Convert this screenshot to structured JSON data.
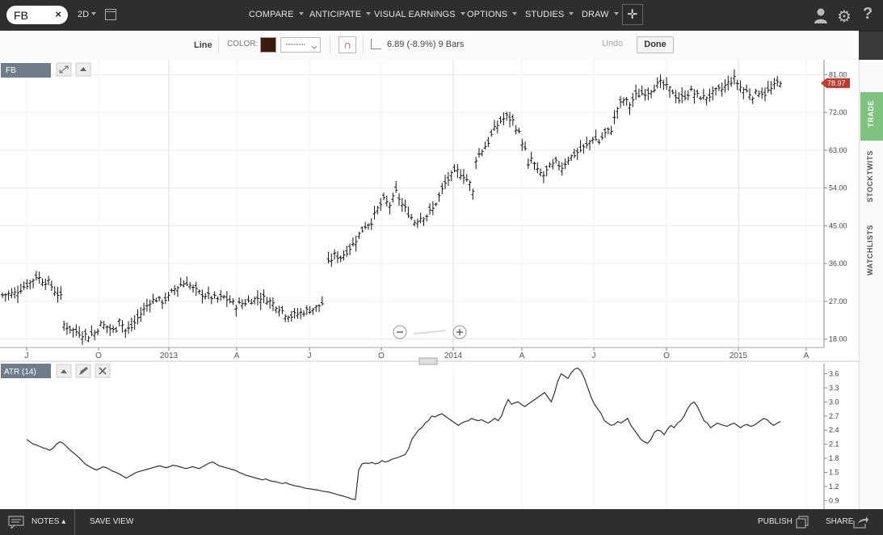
{
  "topbar": {
    "symbol": "FB",
    "clear_icon": "×",
    "period": "2D",
    "menus": [
      "COMPARE",
      "ANTICIPATE",
      "VISUAL EARNINGS",
      "OPTIONS",
      "STUDIES",
      "DRAW"
    ],
    "help": "?"
  },
  "drawbar": {
    "tool": "Line",
    "color_label": "COLOR:",
    "color": "#3a1a0d",
    "measure": "6.89 (-8.9%) 9 Bars",
    "undo": "Undo",
    "done": "Done"
  },
  "main_panel": {
    "label": "FB",
    "last_price": "78.97"
  },
  "atr_panel": {
    "label": "ATR (14)"
  },
  "sidetabs": [
    "TRADE",
    "STOCKTWITS",
    "WATCHLISTS"
  ],
  "bottombar": {
    "notes": "NOTES",
    "save_view": "SAVE VIEW",
    "publish": "PUBLISH",
    "share": "SHARE"
  },
  "chart_data": [
    {
      "type": "ohlc",
      "name": "FB",
      "x_ticks": [
        "J",
        "O",
        "2013",
        "A",
        "J",
        "O",
        "2014",
        "A",
        "J",
        "O",
        "2015",
        "A"
      ],
      "y_ticks": [
        18.0,
        27.0,
        36.0,
        45.0,
        54.0,
        63.0,
        72.0,
        81.0
      ],
      "ylim": [
        16,
        83
      ],
      "last_value": 78.97,
      "close_path": [
        [
          0,
          28.5
        ],
        [
          4,
          29
        ],
        [
          7,
          30.5
        ],
        [
          9,
          31.5
        ],
        [
          11,
          33
        ],
        [
          13,
          32
        ],
        [
          15,
          31.5
        ],
        [
          17,
          29.5
        ],
        [
          19,
          28
        ],
        [
          20,
          21.5
        ],
        [
          22,
          20.5
        ],
        [
          24,
          19.8
        ],
        [
          26,
          19.2
        ],
        [
          28,
          18.8
        ],
        [
          30,
          19.5
        ],
        [
          32,
          21.5
        ],
        [
          34,
          21
        ],
        [
          36,
          20
        ],
        [
          37,
          20.5
        ],
        [
          38,
          23
        ],
        [
          39,
          21.5
        ],
        [
          40,
          20
        ],
        [
          42,
          20.8
        ],
        [
          44,
          23
        ],
        [
          46,
          25
        ],
        [
          48,
          27
        ],
        [
          50,
          27.5
        ],
        [
          52,
          27
        ],
        [
          54,
          28
        ],
        [
          56,
          30
        ],
        [
          58,
          31
        ],
        [
          60,
          31.5
        ],
        [
          62,
          30
        ],
        [
          64,
          29
        ],
        [
          66,
          28.5
        ],
        [
          68,
          28
        ],
        [
          70,
          27.5
        ],
        [
          72,
          28
        ],
        [
          74,
          27
        ],
        [
          76,
          26
        ],
        [
          78,
          26.5
        ],
        [
          80,
          27
        ],
        [
          82,
          27.5
        ],
        [
          84,
          28
        ],
        [
          86,
          27.5
        ],
        [
          88,
          26.5
        ],
        [
          90,
          25.5
        ],
        [
          92,
          24
        ],
        [
          94,
          23.5
        ],
        [
          96,
          24
        ],
        [
          98,
          24.5
        ],
        [
          100,
          25
        ],
        [
          102,
          25.5
        ],
        [
          104,
          26.5
        ],
        [
          105,
          26
        ],
        [
          106,
          36
        ],
        [
          108,
          38
        ],
        [
          110,
          37.5
        ],
        [
          112,
          39
        ],
        [
          114,
          40.5
        ],
        [
          116,
          43
        ],
        [
          118,
          45
        ],
        [
          120,
          46
        ],
        [
          122,
          49
        ],
        [
          124,
          51
        ],
        [
          126,
          50
        ],
        [
          128,
          53
        ],
        [
          130,
          50
        ],
        [
          132,
          48
        ],
        [
          134,
          46
        ],
        [
          136,
          47
        ],
        [
          138,
          47.5
        ],
        [
          140,
          49
        ],
        [
          142,
          52
        ],
        [
          144,
          55
        ],
        [
          146,
          57
        ],
        [
          148,
          58
        ],
        [
          150,
          57
        ],
        [
          152,
          55
        ],
        [
          153,
          53
        ],
        [
          154,
          61
        ],
        [
          156,
          63
        ],
        [
          158,
          65
        ],
        [
          160,
          68
        ],
        [
          162,
          70
        ],
        [
          164,
          71
        ],
        [
          166,
          70
        ],
        [
          168,
          67
        ],
        [
          170,
          63
        ],
        [
          171,
          59
        ],
        [
          172,
          61
        ],
        [
          174,
          58
        ],
        [
          176,
          57
        ],
        [
          178,
          59
        ],
        [
          180,
          60
        ],
        [
          182,
          59
        ],
        [
          184,
          61
        ],
        [
          186,
          62
        ],
        [
          188,
          63
        ],
        [
          190,
          64
        ],
        [
          192,
          66
        ],
        [
          194,
          65
        ],
        [
          196,
          67
        ],
        [
          198,
          68
        ],
        [
          200,
          73
        ],
        [
          202,
          75
        ],
        [
          204,
          74
        ],
        [
          206,
          76
        ],
        [
          208,
          76.5
        ],
        [
          210,
          77
        ],
        [
          212,
          78
        ],
        [
          214,
          79
        ],
        [
          216,
          78
        ],
        [
          218,
          77
        ],
        [
          220,
          75
        ],
        [
          222,
          76
        ],
        [
          224,
          77
        ],
        [
          226,
          76
        ],
        [
          228,
          75.5
        ],
        [
          230,
          76
        ],
        [
          232,
          77
        ],
        [
          234,
          77.5
        ],
        [
          236,
          79
        ],
        [
          238,
          80
        ],
        [
          240,
          78
        ],
        [
          242,
          77
        ],
        [
          244,
          76
        ],
        [
          246,
          77
        ],
        [
          248,
          76.5
        ],
        [
          250,
          77.5
        ],
        [
          252,
          79
        ],
        [
          253,
          79.5
        ]
      ],
      "n_bars": 254
    },
    {
      "type": "line",
      "name": "ATR (14)",
      "y_ticks": [
        0.9,
        1.2,
        1.5,
        1.8,
        2.1,
        2.4,
        2.7,
        3.0,
        3.3,
        3.6
      ],
      "ylim": [
        0.82,
        3.78
      ],
      "values": [
        2.2,
        2.15,
        2.1,
        2.08,
        2.05,
        2.02,
        2.0,
        1.97,
        2.02,
        2.1,
        2.15,
        2.12,
        2.05,
        1.98,
        1.92,
        1.86,
        1.8,
        1.72,
        1.66,
        1.62,
        1.58,
        1.55,
        1.58,
        1.62,
        1.6,
        1.56,
        1.52,
        1.5,
        1.46,
        1.42,
        1.38,
        1.42,
        1.46,
        1.5,
        1.52,
        1.54,
        1.56,
        1.58,
        1.6,
        1.62,
        1.64,
        1.62,
        1.6,
        1.62,
        1.65,
        1.64,
        1.62,
        1.6,
        1.58,
        1.6,
        1.62,
        1.6,
        1.58,
        1.62,
        1.66,
        1.7,
        1.72,
        1.68,
        1.64,
        1.62,
        1.6,
        1.58,
        1.56,
        1.54,
        1.5,
        1.47,
        1.44,
        1.42,
        1.4,
        1.38,
        1.36,
        1.34,
        1.36,
        1.33,
        1.31,
        1.3,
        1.28,
        1.26,
        1.28,
        1.25,
        1.23,
        1.21,
        1.2,
        1.18,
        1.16,
        1.15,
        1.14,
        1.13,
        1.12,
        1.1,
        1.09,
        1.08,
        1.06,
        1.04,
        1.02,
        1.0,
        0.98,
        0.96,
        0.93,
        0.92,
        1.55,
        1.68,
        1.7,
        1.69,
        1.71,
        1.68,
        1.7,
        1.75,
        1.72,
        1.74,
        1.78,
        1.8,
        1.82,
        1.85,
        1.88,
        2.0,
        2.2,
        2.3,
        2.4,
        2.45,
        2.55,
        2.6,
        2.7,
        2.68,
        2.72,
        2.75,
        2.7,
        2.65,
        2.6,
        2.55,
        2.5,
        2.55,
        2.58,
        2.6,
        2.65,
        2.62,
        2.6,
        2.62,
        2.58,
        2.55,
        2.6,
        2.65,
        2.6,
        2.7,
        2.9,
        3.05,
        2.95,
        2.98,
        3.0,
        2.95,
        2.9,
        2.95,
        3.0,
        3.05,
        3.1,
        3.15,
        3.2,
        3.1,
        3.0,
        3.2,
        3.45,
        3.6,
        3.55,
        3.5,
        3.62,
        3.7,
        3.72,
        3.65,
        3.5,
        3.3,
        3.1,
        2.95,
        2.85,
        2.75,
        2.6,
        2.55,
        2.5,
        2.52,
        2.58,
        2.55,
        2.6,
        2.65,
        2.5,
        2.4,
        2.3,
        2.2,
        2.15,
        2.12,
        2.2,
        2.35,
        2.4,
        2.38,
        2.3,
        2.42,
        2.5,
        2.45,
        2.55,
        2.6,
        2.7,
        2.85,
        2.95,
        3.0,
        2.9,
        2.75,
        2.6,
        2.55,
        2.45,
        2.5,
        2.55,
        2.52,
        2.5,
        2.48,
        2.52,
        2.55,
        2.5,
        2.45,
        2.5,
        2.52,
        2.48,
        2.5,
        2.55,
        2.6,
        2.65,
        2.62,
        2.55,
        2.5,
        2.55,
        2.58
      ]
    }
  ]
}
